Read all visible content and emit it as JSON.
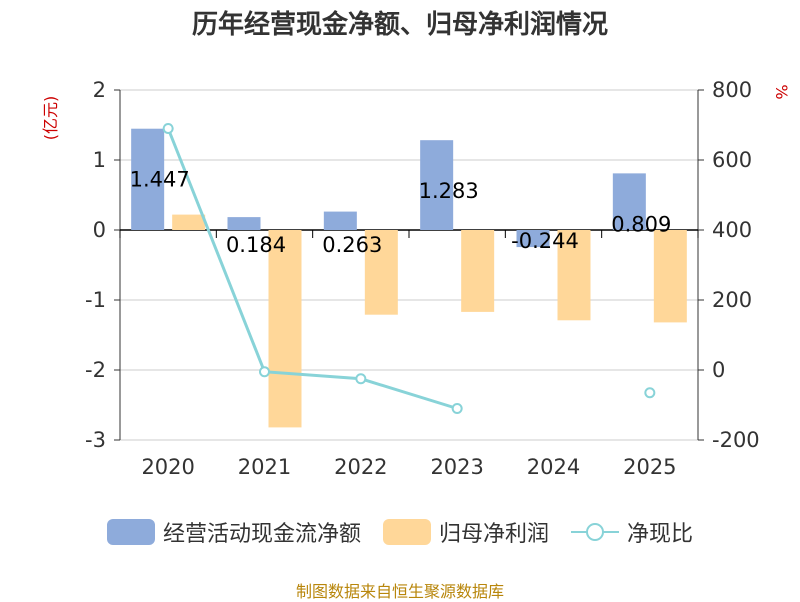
{
  "chart_data": {
    "type": "bar",
    "title": "历年经营现金净额、归母净利润情况",
    "categories": [
      "2020",
      "2021",
      "2022",
      "2023",
      "2024",
      "2025"
    ],
    "series": [
      {
        "name": "经营活动现金流净额",
        "type": "bar",
        "axis": "left",
        "values": [
          1.447,
          0.184,
          0.263,
          1.283,
          -0.244,
          0.809
        ],
        "labels": [
          "1.447",
          "0.184",
          "0.263",
          "1.283",
          "-0.244",
          "0.809"
        ]
      },
      {
        "name": "归母净利润",
        "type": "bar",
        "axis": "left",
        "values": [
          0.22,
          -2.82,
          -1.21,
          -1.17,
          -1.29,
          -1.32
        ]
      },
      {
        "name": "净现比",
        "type": "line",
        "axis": "right",
        "values": [
          690,
          -5,
          -25,
          -110,
          null,
          -65
        ]
      }
    ],
    "ylabel": "(亿元)",
    "y2label": "%",
    "ylim": [
      -3,
      2
    ],
    "y2lim": [
      -200,
      800
    ],
    "yticks": [
      2,
      1,
      0,
      -1,
      -2,
      -3
    ],
    "y2ticks": [
      800,
      600,
      400,
      200,
      0,
      -200
    ],
    "grid": true,
    "legend_position": "bottom"
  },
  "colors": {
    "bar1": "#8eabdb",
    "bar2": "#ffd799",
    "line": "#88d3d8"
  },
  "source": "制图数据来自恒生聚源数据库"
}
